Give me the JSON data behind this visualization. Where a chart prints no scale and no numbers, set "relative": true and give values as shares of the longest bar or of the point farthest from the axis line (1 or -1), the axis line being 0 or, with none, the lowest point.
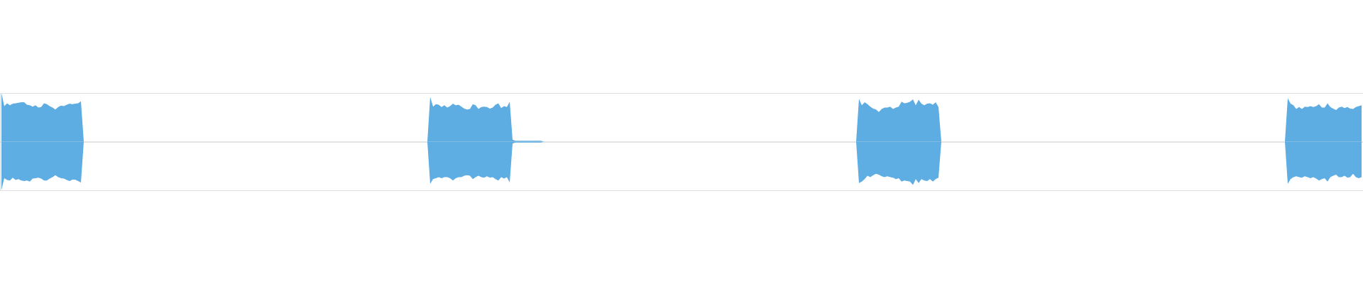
{
  "chart_data": {
    "type": "area",
    "relative": true,
    "categories": [
      null,
      null,
      null,
      null,
      null,
      null,
      null,
      null,
      null,
      null,
      null,
      null,
      null,
      null,
      null,
      null,
      null,
      null,
      null,
      null,
      null,
      null,
      null,
      null,
      null,
      null,
      null,
      null,
      null,
      null,
      null,
      null,
      null,
      null,
      null,
      null,
      null,
      null,
      null,
      null,
      null,
      null,
      null,
      null,
      null,
      null,
      null,
      null,
      null,
      null,
      null,
      null,
      null,
      null,
      null,
      null,
      null,
      null,
      null,
      null,
      null,
      null,
      null,
      null,
      null,
      null,
      null,
      null,
      null,
      null,
      null,
      null,
      null,
      null,
      null,
      null,
      null,
      null,
      null,
      null,
      null,
      null,
      null,
      null,
      null,
      null,
      null,
      null,
      null,
      null,
      null,
      null,
      null,
      null,
      null,
      null,
      null,
      null,
      null,
      null,
      null,
      null,
      null,
      null,
      null,
      null,
      null,
      null,
      null,
      null,
      null,
      null,
      null,
      null,
      null,
      null,
      null,
      null,
      null,
      null,
      null,
      null,
      null,
      null,
      null,
      null,
      null,
      null,
      null,
      null,
      null,
      null,
      null,
      null,
      null,
      null,
      null,
      null,
      null,
      null,
      null,
      null,
      null,
      null,
      null,
      null,
      null,
      null,
      null,
      null,
      null,
      null,
      null,
      null,
      null,
      null,
      null,
      null,
      null,
      null,
      null,
      null,
      null,
      null,
      null,
      null,
      null,
      null,
      null,
      null,
      null,
      null,
      null,
      null,
      null,
      null,
      null,
      null,
      null,
      null,
      null,
      null,
      null,
      null,
      null,
      null,
      null,
      null,
      null,
      null,
      null,
      null,
      null,
      null,
      null,
      null,
      null,
      null,
      null,
      null,
      null,
      null,
      null,
      null,
      null,
      null,
      null,
      null,
      null,
      null,
      null,
      null,
      null,
      null,
      null,
      null,
      null,
      null,
      null,
      null,
      null,
      null,
      null,
      null,
      null,
      null,
      null,
      null,
      null,
      null,
      null,
      null,
      null,
      null,
      null,
      null,
      null,
      null,
      null,
      null,
      null,
      null,
      null,
      null,
      null,
      null,
      null,
      null,
      null,
      null,
      null,
      null,
      null,
      null,
      null,
      null,
      null,
      null,
      null,
      null,
      null,
      null,
      null,
      null,
      null,
      null,
      null,
      null,
      null,
      null,
      null,
      null,
      null,
      null,
      null,
      null,
      null,
      null,
      null,
      null,
      null,
      null,
      null,
      null,
      null,
      null,
      null,
      null,
      null,
      null,
      null,
      null,
      null,
      null,
      null,
      null,
      null,
      null,
      null,
      null,
      null,
      null,
      null,
      null,
      null,
      null,
      null,
      null,
      null,
      null,
      null,
      null,
      null,
      null,
      null,
      null,
      null,
      null,
      null,
      null,
      null,
      null,
      null,
      null,
      null,
      null,
      null,
      null,
      null,
      null,
      null,
      null,
      null,
      null,
      null,
      null,
      null,
      null,
      null,
      null,
      null,
      null,
      null,
      null,
      null,
      null,
      null,
      null,
      null,
      null,
      null,
      null,
      null,
      null,
      null,
      null,
      null,
      null,
      null,
      null,
      null,
      null,
      null,
      null,
      null,
      null,
      null,
      null,
      null,
      null,
      null,
      null,
      null,
      null,
      null,
      null,
      null,
      null,
      null,
      null,
      null,
      null,
      null,
      null,
      null,
      null,
      null,
      null,
      null,
      null,
      null,
      null,
      null,
      null,
      null,
      null,
      null,
      null,
      null,
      null,
      null,
      null,
      null,
      null,
      null,
      null,
      null,
      null,
      null,
      null,
      null,
      null,
      null,
      null,
      null,
      null,
      null,
      null,
      null,
      null,
      null,
      null,
      null,
      null,
      null,
      null,
      null,
      null,
      null,
      null,
      null,
      null,
      null,
      null,
      null,
      null,
      null,
      null,
      null,
      null,
      null,
      null,
      null,
      null,
      null,
      null,
      null,
      null,
      null,
      null,
      null,
      null,
      null,
      null,
      null,
      null,
      null,
      null,
      null,
      null,
      null,
      null,
      null,
      null,
      null,
      null,
      null,
      null,
      null,
      null,
      null,
      null,
      null,
      null,
      null,
      null,
      null,
      null,
      null,
      null
    ],
    "series": [
      {
        "color": "#5dace2",
        "values": [
          1.0,
          0.73,
          0.79,
          0.75,
          0.78,
          0.79,
          0.8,
          0.81,
          0.81,
          0.76,
          0.75,
          0.72,
          0.75,
          0.7,
          0.71,
          0.79,
          0.77,
          0.73,
          0.7,
          0.66,
          0.71,
          0.74,
          0.73,
          0.76,
          0.78,
          0.77,
          0.78,
          0.79,
          0.83,
          0,
          0,
          0,
          0,
          0,
          0,
          0,
          0,
          0,
          0,
          0,
          0,
          0,
          0,
          0,
          0,
          0,
          0,
          0,
          0,
          0,
          0,
          0,
          0,
          0,
          0,
          0,
          0,
          0,
          0,
          0,
          0,
          0,
          0,
          0,
          0,
          0,
          0,
          0,
          0,
          0,
          0,
          0,
          0,
          0,
          0,
          0,
          0,
          0,
          0,
          0,
          0,
          0,
          0,
          0,
          0,
          0,
          0,
          0,
          0,
          0,
          0,
          0,
          0,
          0,
          0,
          0,
          0,
          0,
          0,
          0,
          0,
          0,
          0,
          0,
          0,
          0,
          0,
          0,
          0,
          0,
          0,
          0,
          0,
          0,
          0,
          0,
          0,
          0,
          0,
          0,
          0,
          0,
          0,
          0,
          0,
          0,
          0,
          0,
          0,
          0,
          0,
          0,
          0,
          0,
          0,
          0,
          0,
          0,
          0,
          0,
          0,
          0,
          0,
          0,
          0,
          0,
          0,
          0,
          0,
          0,
          0,
          0.92,
          0.72,
          0.77,
          0.76,
          0.71,
          0.75,
          0.7,
          0.73,
          0.78,
          0.75,
          0.76,
          0.72,
          0.68,
          0.66,
          0.67,
          0.77,
          0.75,
          0.67,
          0.71,
          0.72,
          0.71,
          0.68,
          0.7,
          0.76,
          0.79,
          0.69,
          0.73,
          0.71,
          0.82,
          0.04,
          0.02,
          0.02,
          0.02,
          0.02,
          0.02,
          0.02,
          0.02,
          0.02,
          0.02,
          0.02,
          0,
          0,
          0,
          0,
          0,
          0,
          0,
          0,
          0,
          0,
          0,
          0,
          0,
          0,
          0,
          0,
          0,
          0,
          0,
          0,
          0,
          0,
          0,
          0,
          0,
          0,
          0,
          0,
          0,
          0,
          0,
          0,
          0,
          0,
          0,
          0,
          0,
          0,
          0,
          0,
          0,
          0,
          0,
          0,
          0,
          0,
          0,
          0,
          0,
          0,
          0,
          0,
          0,
          0,
          0,
          0,
          0,
          0,
          0,
          0,
          0,
          0,
          0,
          0,
          0,
          0,
          0,
          0,
          0,
          0,
          0,
          0,
          0,
          0,
          0,
          0,
          0,
          0,
          0,
          0,
          0,
          0,
          0,
          0,
          0,
          0,
          0,
          0,
          0,
          0,
          0,
          0,
          0,
          0,
          0,
          0,
          0,
          0,
          0,
          0,
          0,
          0,
          0,
          0,
          0,
          0,
          0,
          0,
          0,
          0,
          0,
          0.88,
          0.75,
          0.81,
          0.77,
          0.72,
          0.68,
          0.66,
          0.61,
          0.67,
          0.7,
          0.7,
          0.72,
          0.67,
          0.7,
          0.72,
          0.82,
          0.79,
          0.8,
          0.82,
          0.87,
          0.75,
          0.86,
          0.78,
          0.75,
          0.78,
          0.79,
          0.76,
          0.81,
          0.71,
          0,
          0,
          0,
          0,
          0,
          0,
          0,
          0,
          0,
          0,
          0,
          0,
          0,
          0,
          0,
          0,
          0,
          0,
          0,
          0,
          0,
          0,
          0,
          0,
          0,
          0,
          0,
          0,
          0,
          0,
          0,
          0,
          0,
          0,
          0,
          0,
          0,
          0,
          0,
          0,
          0,
          0,
          0,
          0,
          0,
          0,
          0,
          0,
          0,
          0,
          0,
          0,
          0,
          0,
          0,
          0,
          0,
          0,
          0,
          0,
          0,
          0,
          0,
          0,
          0,
          0,
          0,
          0,
          0,
          0,
          0,
          0,
          0,
          0,
          0,
          0,
          0,
          0,
          0,
          0,
          0,
          0,
          0,
          0,
          0,
          0,
          0,
          0,
          0,
          0,
          0,
          0,
          0,
          0,
          0,
          0,
          0,
          0,
          0,
          0,
          0,
          0,
          0,
          0,
          0,
          0,
          0,
          0,
          0,
          0,
          0,
          0,
          0,
          0,
          0,
          0,
          0,
          0,
          0,
          0,
          0,
          0,
          0.89,
          0.78,
          0.75,
          0.67,
          0.71,
          0.67,
          0.72,
          0.71,
          0.73,
          0.71,
          0.73,
          0.77,
          0.7,
          0.7,
          0.79,
          0.71,
          0.68,
          0.65,
          0.7,
          0.72,
          0.69,
          0.71,
          0.68,
          0.67,
          0.71,
          0.73,
          0.75
        ]
      },
      {
        "color": "#5eade3",
        "values": [
          -1.0,
          -0.75,
          -0.79,
          -0.8,
          -0.74,
          -0.79,
          -0.77,
          -0.8,
          -0.81,
          -0.8,
          -0.82,
          -0.76,
          -0.75,
          -0.74,
          -0.76,
          -0.8,
          -0.8,
          -0.76,
          -0.73,
          -0.69,
          -0.73,
          -0.75,
          -0.76,
          -0.79,
          -0.81,
          -0.78,
          -0.78,
          -0.81,
          -0.84,
          0,
          0,
          0,
          0,
          0,
          0,
          0,
          0,
          0,
          0,
          0,
          0,
          0,
          0,
          0,
          0,
          0,
          0,
          0,
          0,
          0,
          0,
          0,
          0,
          0,
          0,
          0,
          0,
          0,
          0,
          0,
          0,
          0,
          0,
          0,
          0,
          0,
          0,
          0,
          0,
          0,
          0,
          0,
          0,
          0,
          0,
          0,
          0,
          0,
          0,
          0,
          0,
          0,
          0,
          0,
          0,
          0,
          0,
          0,
          0,
          0,
          0,
          0,
          0,
          0,
          0,
          0,
          0,
          0,
          0,
          0,
          0,
          0,
          0,
          0,
          0,
          0,
          0,
          0,
          0,
          0,
          0,
          0,
          0,
          0,
          0,
          0,
          0,
          0,
          0,
          0,
          0,
          0,
          0,
          0,
          0,
          0,
          0,
          0,
          0,
          0,
          0,
          0,
          0,
          0,
          0,
          0,
          0,
          0,
          0,
          0,
          0,
          0,
          0,
          0,
          0,
          0,
          0,
          0,
          0,
          0,
          0,
          -0.87,
          -0.77,
          -0.75,
          -0.73,
          -0.75,
          -0.73,
          -0.73,
          -0.75,
          -0.8,
          -0.75,
          -0.73,
          -0.73,
          -0.7,
          -0.69,
          -0.7,
          -0.77,
          -0.73,
          -0.7,
          -0.73,
          -0.74,
          -0.71,
          -0.74,
          -0.73,
          -0.77,
          -0.8,
          -0.73,
          -0.76,
          -0.73,
          -0.84,
          -0.04,
          -0.02,
          -0.02,
          -0.02,
          -0.02,
          -0.02,
          -0.02,
          -0.02,
          -0.02,
          -0.02,
          -0.02,
          0,
          0,
          0,
          0,
          0,
          0,
          0,
          0,
          0,
          0,
          0,
          0,
          0,
          0,
          0,
          0,
          0,
          0,
          0,
          0,
          0,
          0,
          0,
          0,
          0,
          0,
          0,
          0,
          0,
          0,
          0,
          0,
          0,
          0,
          0,
          0,
          0,
          0,
          0,
          0,
          0,
          0,
          0,
          0,
          0,
          0,
          0,
          0,
          0,
          0,
          0,
          0,
          0,
          0,
          0,
          0,
          0,
          0,
          0,
          0,
          0,
          0,
          0,
          0,
          0,
          0,
          0,
          0,
          0,
          0,
          0,
          0,
          0,
          0,
          0,
          0,
          0,
          0,
          0,
          0,
          0,
          0,
          0,
          0,
          0,
          0,
          0,
          0,
          0,
          0,
          0,
          0,
          0,
          0,
          0,
          0,
          0,
          0,
          0,
          0,
          0,
          0,
          0,
          0,
          0,
          0,
          0,
          0,
          0,
          0,
          0,
          -0.85,
          -0.82,
          -0.77,
          -0.7,
          -0.73,
          -0.69,
          -0.66,
          -0.68,
          -0.71,
          -0.73,
          -0.71,
          -0.73,
          -0.74,
          -0.77,
          -0.75,
          -0.82,
          -0.8,
          -0.81,
          -0.82,
          -0.89,
          -0.77,
          -0.85,
          -0.77,
          -0.8,
          -0.81,
          -0.77,
          -0.82,
          -0.77,
          -0.74,
          0,
          0,
          0,
          0,
          0,
          0,
          0,
          0,
          0,
          0,
          0,
          0,
          0,
          0,
          0,
          0,
          0,
          0,
          0,
          0,
          0,
          0,
          0,
          0,
          0,
          0,
          0,
          0,
          0,
          0,
          0,
          0,
          0,
          0,
          0,
          0,
          0,
          0,
          0,
          0,
          0,
          0,
          0,
          0,
          0,
          0,
          0,
          0,
          0,
          0,
          0,
          0,
          0,
          0,
          0,
          0,
          0,
          0,
          0,
          0,
          0,
          0,
          0,
          0,
          0,
          0,
          0,
          0,
          0,
          0,
          0,
          0,
          0,
          0,
          0,
          0,
          0,
          0,
          0,
          0,
          0,
          0,
          0,
          0,
          0,
          0,
          0,
          0,
          0,
          0,
          0,
          0,
          0,
          0,
          0,
          0,
          0,
          0,
          0,
          0,
          0,
          0,
          0,
          0,
          0,
          0,
          0,
          0,
          0,
          0,
          0,
          0,
          0,
          0,
          0,
          0,
          0,
          0,
          0,
          0,
          0,
          0,
          -0.87,
          -0.77,
          -0.73,
          -0.71,
          -0.73,
          -0.74,
          -0.71,
          -0.73,
          -0.75,
          -0.73,
          -0.76,
          -0.8,
          -0.77,
          -0.75,
          -0.82,
          -0.73,
          -0.7,
          -0.68,
          -0.73,
          -0.73,
          -0.7,
          -0.74,
          -0.73,
          -0.66,
          -0.73,
          -0.75,
          -0.73
        ]
      }
    ]
  }
}
